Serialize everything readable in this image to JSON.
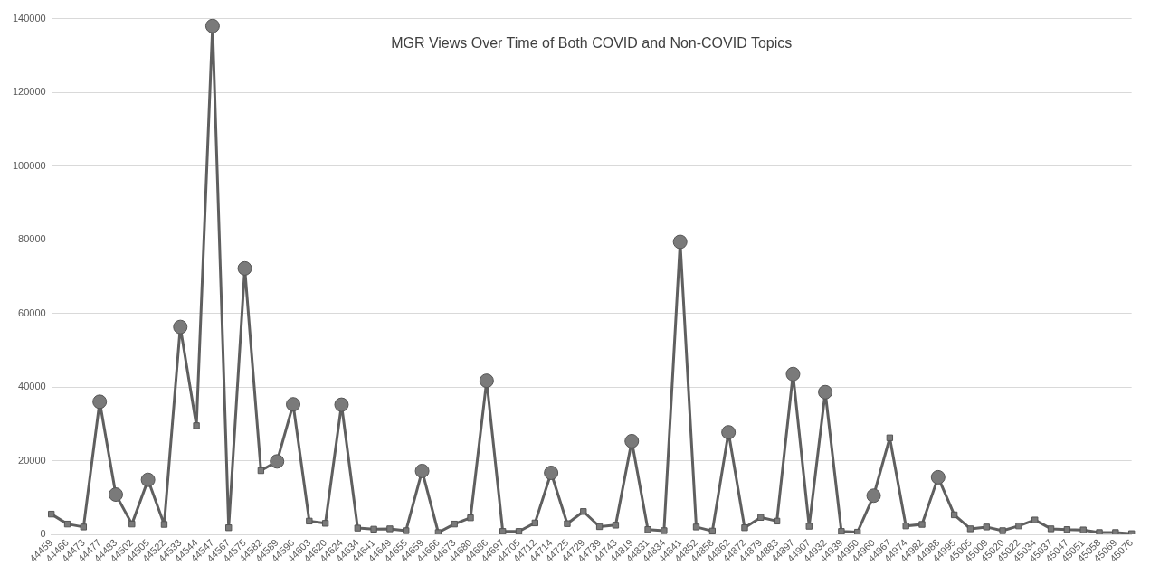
{
  "chart_data": {
    "type": "line",
    "title": "MGR Views Over Time of Both COVID and Non-COVID Topics",
    "categories": [
      "44459",
      "44466",
      "44473",
      "44477",
      "44483",
      "44502",
      "44505",
      "44522",
      "44533",
      "44544",
      "44547",
      "44567",
      "44575",
      "44582",
      "44589",
      "44596",
      "44603",
      "44620",
      "44624",
      "44634",
      "44641",
      "44649",
      "44655",
      "44659",
      "44666",
      "44673",
      "44680",
      "44686",
      "44697",
      "44705",
      "44712",
      "44714",
      "44725",
      "44729",
      "44739",
      "44743",
      "44819",
      "44831",
      "44834",
      "44841",
      "44852",
      "44858",
      "44862",
      "44872",
      "44879",
      "44883",
      "44897",
      "44907",
      "44932",
      "44939",
      "44950",
      "44960",
      "44967",
      "44974",
      "44982",
      "44988",
      "44995",
      "45005",
      "45009",
      "45020",
      "45022",
      "45034",
      "45037",
      "45047",
      "45051",
      "45058",
      "45069",
      "45076"
    ],
    "series": [
      {
        "marker": "none",
        "color": "#5f5f5f",
        "values": [
          5500,
          2800,
          2000,
          36000,
          10800,
          2800,
          14800,
          2700,
          56300,
          29500,
          138000,
          1800,
          72200,
          17300,
          19800,
          35300,
          3600,
          3000,
          35200,
          1700,
          1400,
          1500,
          1000,
          17200,
          500,
          2800,
          4500,
          41700,
          800,
          800,
          3100,
          16700,
          2900,
          6200,
          2100,
          2500,
          25300,
          1300,
          1000,
          79400,
          2000,
          900,
          27700,
          1800,
          4600,
          3600,
          43500,
          2200,
          38600,
          800,
          600,
          10500,
          26200,
          2300,
          2700,
          15500,
          5300,
          1500,
          2000,
          1000,
          2300,
          3900,
          1500,
          1300,
          1200,
          500,
          500,
          200
        ]
      },
      {
        "type": "scatter",
        "marker": "circle",
        "color": "#7a7a7a",
        "values": [
          null,
          null,
          null,
          36000,
          10800,
          null,
          14800,
          null,
          56300,
          null,
          138000,
          null,
          72200,
          null,
          19800,
          35300,
          null,
          null,
          35200,
          null,
          null,
          null,
          null,
          17200,
          null,
          null,
          null,
          41700,
          null,
          null,
          null,
          16700,
          null,
          null,
          null,
          null,
          25300,
          null,
          null,
          79400,
          null,
          null,
          27700,
          null,
          null,
          null,
          43500,
          null,
          38600,
          null,
          null,
          10500,
          null,
          null,
          null,
          15500,
          null,
          null,
          null,
          null,
          null,
          null,
          null,
          null,
          null,
          null,
          null,
          null
        ]
      },
      {
        "type": "scatter",
        "marker": "square",
        "color": "#7a7a7a",
        "values": [
          5500,
          2800,
          2000,
          null,
          null,
          2800,
          null,
          2700,
          null,
          29500,
          null,
          1800,
          null,
          17300,
          null,
          null,
          3600,
          3000,
          null,
          1700,
          1400,
          1500,
          1000,
          null,
          500,
          2800,
          4500,
          null,
          800,
          800,
          3100,
          null,
          2900,
          6200,
          2100,
          2500,
          null,
          1300,
          1000,
          null,
          2000,
          900,
          null,
          1800,
          4600,
          3600,
          null,
          2200,
          null,
          800,
          600,
          null,
          26200,
          2300,
          2700,
          null,
          5300,
          1500,
          2000,
          1000,
          2300,
          3900,
          1500,
          1300,
          1200,
          500,
          500,
          200
        ]
      }
    ],
    "ylim": [
      0,
      140000
    ],
    "yticks": [
      0,
      20000,
      40000,
      60000,
      80000,
      100000,
      120000,
      140000
    ],
    "grid": "y",
    "legend": false
  }
}
